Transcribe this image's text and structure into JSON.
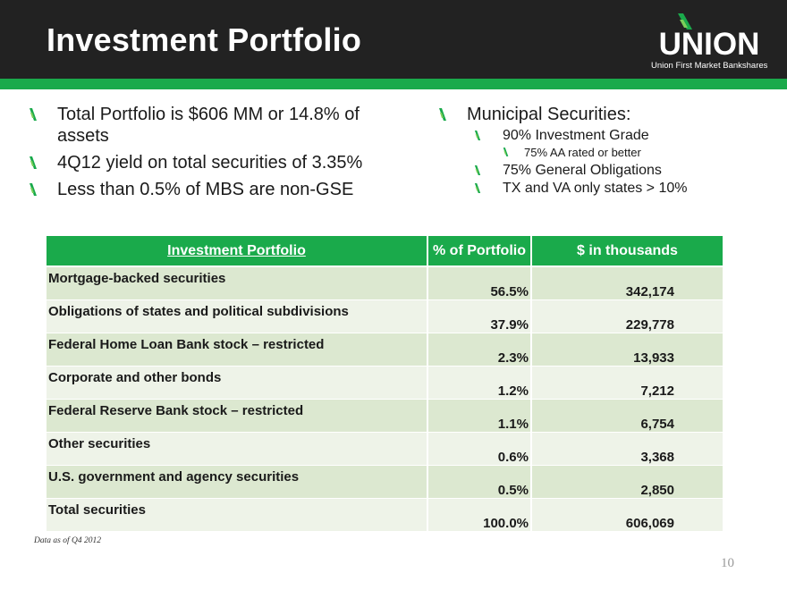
{
  "header": {
    "title": "Investment Portfolio",
    "logo_word": "UNION",
    "logo_subtitle": "Union First Market Bankshares"
  },
  "colors": {
    "header_bg": "#222222",
    "accent_green": "#1aaa4b",
    "row_dark": "#dce8d0",
    "row_light": "#eef3e8"
  },
  "icons": {
    "bullet": "green-leaf-slash-icon",
    "logo": "union-leaf-logo-icon"
  },
  "left_bullets": [
    "Total Portfolio is $606 MM or 14.8% of assets",
    "4Q12 yield on total securities of 3.35%",
    "Less than 0.5% of MBS are non-GSE"
  ],
  "right_bullets": {
    "heading": "Municipal Securities:",
    "items": [
      {
        "text": "90% Investment Grade",
        "sub": [
          "75% AA rated or better"
        ]
      },
      {
        "text": "75% General Obligations",
        "sub": []
      },
      {
        "text": "TX and VA only states > 10%",
        "sub": []
      }
    ]
  },
  "table": {
    "headers": [
      "Investment Portfolio",
      "% of Portfolio",
      "$ in thousands"
    ],
    "rows": [
      [
        "Mortgage-backed securities",
        "56.5%",
        "342,174"
      ],
      [
        "Obligations of states and political subdivisions",
        "37.9%",
        "229,778"
      ],
      [
        "Federal Home Loan Bank stock – restricted",
        "2.3%",
        "13,933"
      ],
      [
        "Corporate and other bonds",
        "1.2%",
        "7,212"
      ],
      [
        "Federal Reserve Bank stock – restricted",
        "1.1%",
        "6,754"
      ],
      [
        "Other securities",
        "0.6%",
        "3,368"
      ],
      [
        "U.S. government and agency securities",
        "0.5%",
        "2,850"
      ],
      [
        "Total securities",
        "100.0%",
        "606,069"
      ]
    ]
  },
  "footnote": "Data as of Q4 2012",
  "page_number": "10"
}
